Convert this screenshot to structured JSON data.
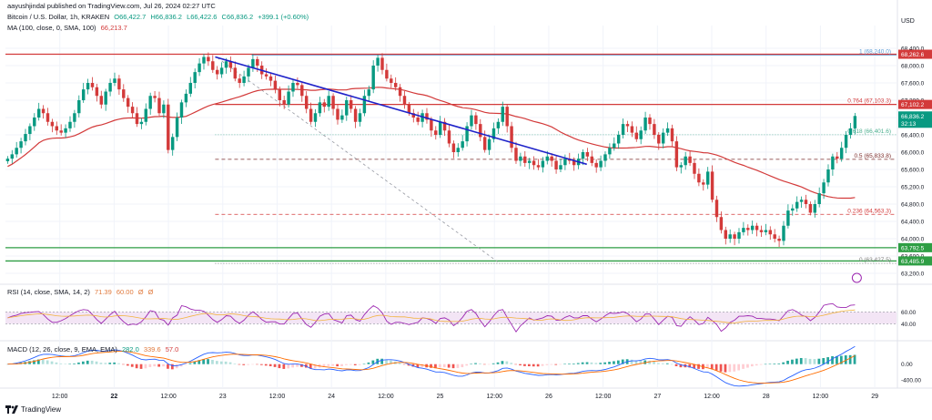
{
  "header": {
    "publisher": "aayushjindal published on TradingView.com, Jul 26, 2024 02:27 UTC",
    "symbol": "Bitcoin / U.S. Dollar, 1h, KRAKEN",
    "ohlc": {
      "o": "O66,422.7",
      "h": "H66,836.2",
      "l": "L66,422.6",
      "c": "C66,836.2",
      "chg": "+399.1 (+0.60%)"
    },
    "ma_label": "MA (100, close, 0, SMA, 100)",
    "ma_value": "66,213.7",
    "currency": "USD"
  },
  "footer": {
    "brand": "TradingView"
  },
  "chart_data": [
    {
      "type": "candlestick",
      "title": "Bitcoin / U.S. Dollar, 1h, KRAKEN",
      "ylim": [
        63200,
        68800
      ],
      "price_ticks": [
        "68,400.0",
        "68,000.0",
        "67,600.0",
        "67,200.0",
        "66,800.0",
        "66,400.0",
        "66,000.0",
        "65,600.0",
        "65,200.0",
        "64,800.0",
        "64,400.0",
        "64,000.0",
        "63,600.0",
        "63,200.0"
      ],
      "x_ticks": [
        {
          "label": "12:00",
          "t": 0.5
        },
        {
          "label": "22",
          "t": 1.0,
          "bold": true
        },
        {
          "label": "12:00",
          "t": 1.5
        },
        {
          "label": "23",
          "t": 2.0
        },
        {
          "label": "12:00",
          "t": 2.5
        },
        {
          "label": "24",
          "t": 3.0
        },
        {
          "label": "12:00",
          "t": 3.5
        },
        {
          "label": "25",
          "t": 4.0
        },
        {
          "label": "12:00",
          "t": 4.5
        },
        {
          "label": "26",
          "t": 5.0
        },
        {
          "label": "12:00",
          "t": 5.5
        },
        {
          "label": "27",
          "t": 6.0
        },
        {
          "label": "12:00",
          "t": 6.5
        },
        {
          "label": "28",
          "t": 7.0
        },
        {
          "label": "12:00",
          "t": 7.5
        },
        {
          "label": "29",
          "t": 8.0
        }
      ],
      "candles_hourly_close": [
        65850,
        65950,
        66100,
        66250,
        66420,
        66600,
        66800,
        67000,
        66900,
        66700,
        66600,
        66500,
        66450,
        66550,
        66700,
        66900,
        67200,
        67450,
        67600,
        67500,
        67300,
        67100,
        67400,
        67600,
        67700,
        67450,
        67250,
        67050,
        66900,
        66650,
        66700,
        67000,
        67300,
        67250,
        66900,
        67100,
        66050,
        66350,
        66800,
        67150,
        67350,
        67600,
        67850,
        68050,
        68200,
        68100,
        67900,
        67800,
        67950,
        68100,
        67950,
        67700,
        67600,
        67750,
        67950,
        68150,
        68000,
        67800,
        67750,
        67650,
        67450,
        67200,
        67100,
        67400,
        67600,
        67550,
        67300,
        67000,
        66700,
        66900,
        67150,
        67050,
        67300,
        67000,
        66750,
        66850,
        67200,
        67000,
        66700,
        66900,
        67300,
        67450,
        68000,
        68180,
        67900,
        67700,
        67600,
        67500,
        67300,
        67100,
        66900,
        66800,
        66700,
        66900,
        66750,
        66500,
        66400,
        66700,
        66500,
        66200,
        66000,
        66100,
        66250,
        66600,
        66850,
        66650,
        66350,
        66050,
        66300,
        66550,
        66700,
        67050,
        66600,
        66100,
        65800,
        65900,
        65750,
        65800,
        65700,
        65650,
        65800,
        65900,
        65800,
        65600,
        65700,
        65850,
        65800,
        65700,
        65850,
        66000,
        65900,
        65750,
        65650,
        65800,
        65950,
        66100,
        66200,
        66400,
        66650,
        66600,
        66450,
        66300,
        66500,
        66800,
        66650,
        66400,
        66200,
        66450,
        66550,
        66250,
        65650,
        65700,
        65900,
        65750,
        65500,
        65300,
        65250,
        65550,
        64900,
        64500,
        64200,
        64000,
        64100,
        64000,
        64150,
        64250,
        64200,
        64300,
        64200,
        64150,
        64200,
        64100,
        64000,
        63950,
        64300,
        64650,
        64700,
        64850,
        64900,
        64800,
        64600,
        64800,
        65050,
        65300,
        65600,
        65900,
        65850,
        66100,
        66400,
        66550,
        66836
      ],
      "series": [
        {
          "name": "MA (100, close, 0, SMA, 100)",
          "value": "66,213.7",
          "color": "#d33a3a"
        }
      ],
      "levels": [
        {
          "label": "1 (68,240.0)",
          "value": 68240,
          "color": "#5b9bd5",
          "style": "fib"
        },
        {
          "label": "0.764 (67,103.3)",
          "value": 67103,
          "color": "#d33a3a",
          "style": "solid"
        },
        {
          "label": "0.618 (66,401.6)",
          "value": 66402,
          "color": "#4caf8f",
          "style": "dotted"
        },
        {
          "label": "0.5 (65,833.8)",
          "value": 65834,
          "color": "#7a2a2a",
          "style": "dashed"
        },
        {
          "label": "0.236 (64,563.3)",
          "value": 64563,
          "color": "#d33a3a",
          "style": "dashed"
        },
        {
          "label": "0 (63,427.5)",
          "value": 63428,
          "color": "#7f7f7f",
          "style": "dotted"
        }
      ],
      "hlines": [
        {
          "value": 68262.6,
          "color": "#d33a3a",
          "tag": "68,262.6"
        },
        {
          "value": 63792.5,
          "color": "#2e9e44",
          "tag": "63,792.5"
        },
        {
          "value": 63485.9,
          "color": "#2e9e44",
          "tag": "63,485.9"
        }
      ],
      "price_tags": [
        {
          "value": 67102.2,
          "tag": "67,102.2",
          "color": "#d33a3a"
        },
        {
          "value": 66836.2,
          "tag": "66,836.2",
          "sub": "32:13",
          "color": "#089981"
        }
      ],
      "trendline": {
        "from_t": 1.93,
        "from_price": 68200,
        "to_t": 5.35,
        "to_price": 65720,
        "color": "#1e22c9"
      },
      "fib_diagonal": {
        "from_t": 1.95,
        "from_price": 68180,
        "to_t": 4.55,
        "to_price": 63430
      }
    },
    {
      "type": "line",
      "title": "RSI",
      "label": "RSI (14, close, SMA, 14, 2)",
      "value": "71.39",
      "extra": [
        "60.00",
        "Ø",
        "Ø"
      ],
      "ylim": [
        15,
        100
      ],
      "ticks": [
        "60.00",
        "40.00"
      ],
      "band": [
        40,
        60
      ]
    },
    {
      "type": "bar",
      "title": "MACD",
      "label": "MACD (12, 26, close, 9, EMA, EMA)",
      "values_text": [
        "282.0",
        "339.6",
        "57.0"
      ],
      "ticks": [
        "0.00",
        "-400.00"
      ]
    }
  ]
}
